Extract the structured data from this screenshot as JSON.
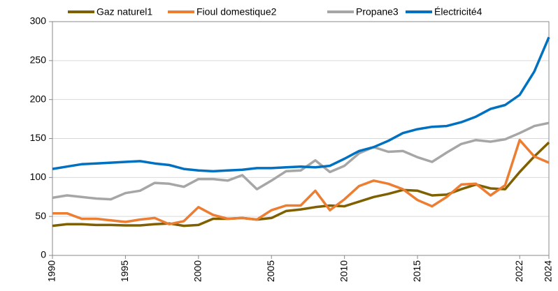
{
  "chart_data": {
    "type": "line",
    "x": [
      1990,
      1991,
      1992,
      1993,
      1994,
      1995,
      1996,
      1997,
      1998,
      1999,
      2000,
      2001,
      2002,
      2003,
      2004,
      2005,
      2006,
      2007,
      2008,
      2009,
      2010,
      2011,
      2012,
      2013,
      2014,
      2015,
      2016,
      2017,
      2018,
      2019,
      2020,
      2021,
      2022,
      2023,
      2024
    ],
    "series": [
      {
        "name": "Gaz naturel1",
        "color": "#7f6000",
        "values": [
          38,
          40,
          40,
          39,
          39,
          38.5,
          38.5,
          40,
          41,
          38,
          39,
          47,
          47,
          48,
          46,
          48,
          57,
          59,
          62,
          64,
          63,
          69,
          75,
          79,
          84,
          83,
          77,
          78,
          85,
          91,
          86,
          85,
          107,
          127,
          145
        ]
      },
      {
        "name": "Fioul domestique2",
        "color": "#ed7d31",
        "values": [
          54,
          54,
          47,
          47,
          45,
          43,
          46,
          48,
          40,
          44,
          62,
          52,
          47,
          48,
          46,
          58,
          64,
          64,
          83,
          58,
          72,
          89,
          96,
          92,
          85,
          71,
          63,
          75,
          91,
          92,
          77,
          90,
          148,
          127,
          119
        ]
      },
      {
        "name": "Propane3",
        "color": "#a6a6a6",
        "values": [
          74,
          77,
          75,
          73,
          72,
          80,
          83,
          93,
          92,
          88,
          98,
          98,
          96,
          103,
          85,
          96,
          108,
          109,
          122,
          107,
          115,
          131,
          139,
          133,
          134,
          126,
          120,
          132,
          143,
          148,
          146,
          149,
          157,
          166,
          170
        ]
      },
      {
        "name": "Électricité4",
        "color": "#0070c0",
        "values": [
          111,
          114,
          117,
          118,
          119,
          120,
          121,
          118,
          116,
          111,
          109,
          108,
          109,
          110,
          112,
          112,
          113,
          114,
          113,
          115,
          124,
          134,
          139,
          147,
          157,
          162,
          165,
          166,
          171,
          178,
          188,
          193,
          206,
          236,
          280
        ]
      }
    ],
    "xlim": [
      1990,
      2024
    ],
    "xticks": [
      1990,
      1995,
      2000,
      2005,
      2010,
      2015,
      2022,
      2024
    ],
    "ylim": [
      0,
      300
    ],
    "yticks": [
      0,
      50,
      100,
      150,
      200,
      250,
      300
    ],
    "grid": true
  }
}
